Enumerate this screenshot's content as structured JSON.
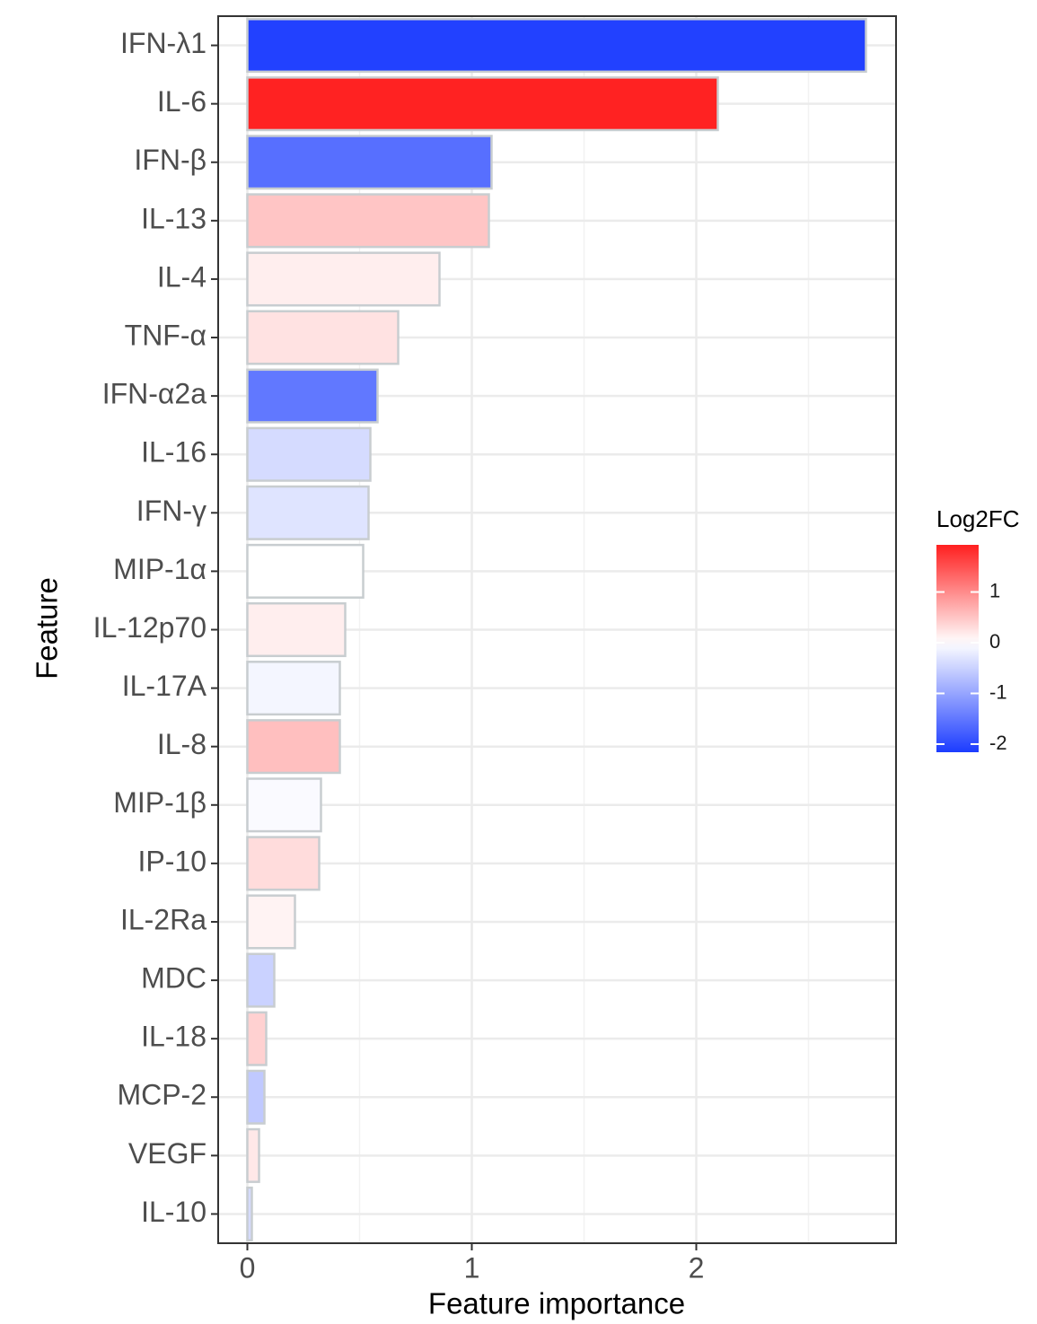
{
  "chart_data": {
    "type": "bar",
    "orientation": "horizontal",
    "xlabel": "Feature importance",
    "ylabel": "Feature",
    "categories": [
      "IFN-λ1",
      "IL-6",
      "IFN-β",
      "IL-13",
      "IL-4",
      "TNF-α",
      "IFN-α2a",
      "IL-16",
      "IFN-γ",
      "MIP-1α",
      "IL-12p70",
      "IL-17A",
      "IL-8",
      "MIP-1β",
      "IP-10",
      "IL-2Ra",
      "MDC",
      "IL-18",
      "MCP-2",
      "VEGF",
      "IL-10"
    ],
    "values": [
      2.756,
      2.096,
      1.088,
      1.076,
      0.856,
      0.672,
      0.58,
      0.548,
      0.54,
      0.516,
      0.436,
      0.412,
      0.412,
      0.328,
      0.32,
      0.212,
      0.12,
      0.084,
      0.076,
      0.052,
      0.02
    ],
    "log2fc": [
      -2.1,
      1.9,
      -1.6,
      0.5,
      0.15,
      0.25,
      -1.5,
      -0.4,
      -0.3,
      0,
      0.15,
      -0.1,
      0.55,
      -0.05,
      0.3,
      0.1,
      -0.5,
      0.4,
      -0.6,
      0.2,
      -0.4
    ],
    "xlim": [
      -0.13,
      2.89
    ],
    "xticks": [
      0,
      1,
      2
    ],
    "xminor": [
      0.5,
      1.5,
      2.5
    ],
    "grid": true,
    "legend": {
      "title": "Log2FC",
      "clim": [
        -2.16,
        1.93
      ],
      "ticks": [
        1,
        0,
        -1,
        -2
      ],
      "low_color": "#1c3cff",
      "mid_color": "#ffffff",
      "high_color": "#ff1f1f"
    }
  }
}
